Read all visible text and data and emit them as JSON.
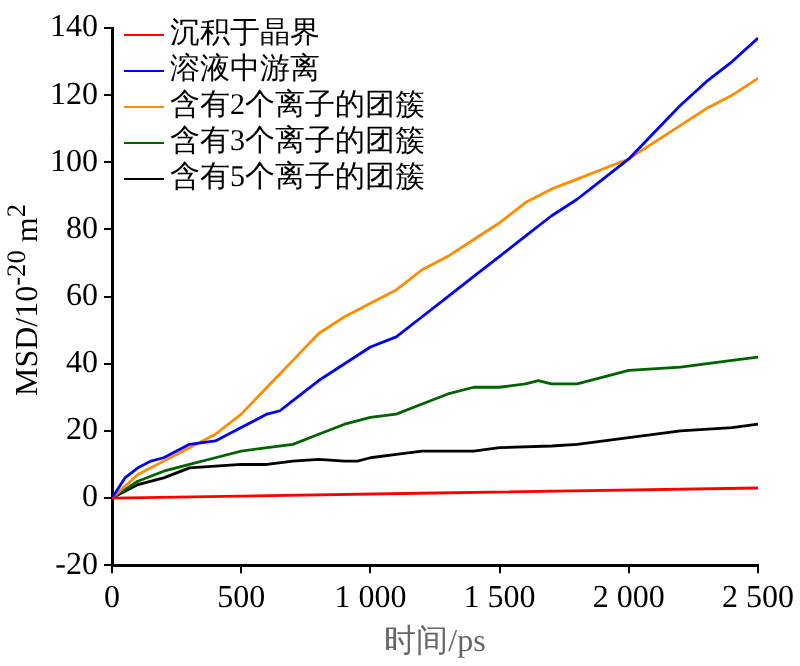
{
  "chart_data": {
    "type": "line",
    "xlabel": "时间/ps",
    "ylabel": "MSD/10$^{-20}$ m$^{2}$",
    "xlim": [
      0,
      2500
    ],
    "xticks": [
      0,
      500,
      {
        "value": 1000,
        "label": "1 000"
      },
      {
        "value": 1500,
        "label": "1 500"
      },
      {
        "value": 2000,
        "label": "2 000"
      },
      {
        "value": 2500,
        "label": "2 500"
      }
    ],
    "ylim": [
      -20,
      140
    ],
    "yticks": [
      -20,
      0,
      20,
      40,
      60,
      80,
      100,
      120,
      140
    ],
    "grid": false,
    "legend": "top left",
    "marker": "none",
    "line_style": "solid",
    "series": [
      {
        "name": "沉积于晶界",
        "color": "#ff0000",
        "x": [
          0,
          1250,
          2500
        ],
        "values": [
          0,
          1.5,
          3
        ]
      },
      {
        "name": "溶液中游离",
        "color": "#0000ff",
        "x": [
          0,
          50,
          100,
          150,
          200,
          250,
          300,
          400,
          500,
          600,
          650,
          700,
          800,
          900,
          1000,
          1100,
          1200,
          1300,
          1400,
          1500,
          1600,
          1700,
          1800,
          1900,
          2000,
          2100,
          2200,
          2300,
          2400,
          2500
        ],
        "values": [
          0,
          6,
          9,
          11,
          12,
          14,
          16,
          17,
          21,
          25,
          26,
          29,
          35,
          40,
          45,
          48,
          54,
          60,
          66,
          72,
          78,
          84,
          89,
          95,
          101,
          109,
          117,
          124,
          130,
          137
        ]
      },
      {
        "name": "含有2个离子的团簇",
        "color": "#ff8c00",
        "x": [
          0,
          100,
          200,
          300,
          400,
          500,
          600,
          700,
          800,
          900,
          1000,
          1100,
          1200,
          1300,
          1400,
          1500,
          1600,
          1700,
          1800,
          1900,
          2000,
          2100,
          2200,
          2300,
          2400,
          2500
        ],
        "values": [
          0,
          7,
          11,
          15,
          19,
          25,
          33,
          41,
          49,
          54,
          58,
          62,
          68,
          72,
          77,
          82,
          88,
          92,
          95,
          98,
          101,
          106,
          111,
          116,
          120,
          125
        ]
      },
      {
        "name": "含有3个离子的团簇",
        "color": "#006400",
        "x": [
          0,
          100,
          200,
          300,
          400,
          500,
          600,
          700,
          800,
          900,
          1000,
          1100,
          1200,
          1300,
          1400,
          1500,
          1600,
          1650,
          1700,
          1800,
          1900,
          2000,
          2200,
          2400,
          2500
        ],
        "values": [
          0,
          5,
          8,
          10,
          12,
          14,
          15,
          16,
          19,
          22,
          24,
          25,
          28,
          31,
          33,
          33,
          34,
          35,
          34,
          34,
          36,
          38,
          39,
          41,
          42
        ]
      },
      {
        "name": "含有5个离子的团簇",
        "color": "#000000",
        "x": [
          0,
          100,
          200,
          300,
          400,
          500,
          600,
          700,
          800,
          900,
          950,
          1000,
          1100,
          1200,
          1400,
          1500,
          1700,
          1800,
          2000,
          2200,
          2400,
          2500
        ],
        "values": [
          0,
          4,
          6,
          9,
          9.5,
          10,
          10,
          11,
          11.5,
          11,
          11,
          12,
          13,
          14,
          14,
          15,
          15.5,
          16,
          18,
          20,
          21,
          22
        ]
      }
    ]
  }
}
